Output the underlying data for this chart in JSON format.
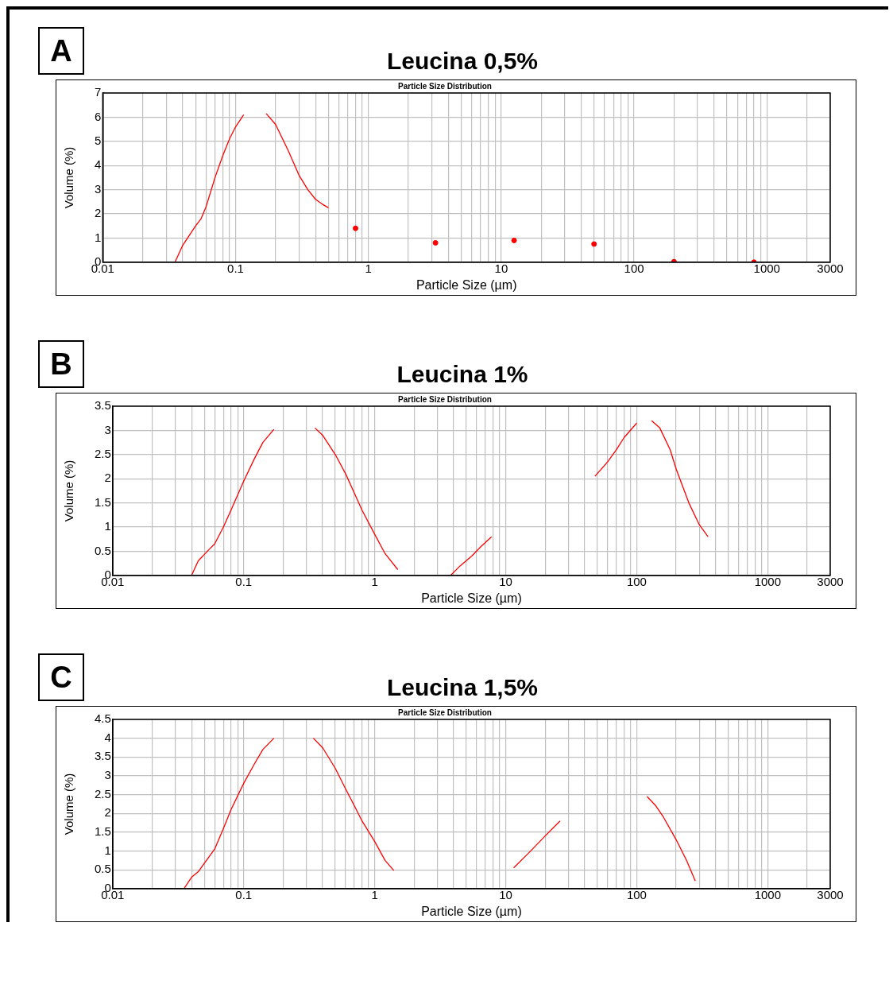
{
  "chart_data": [
    {
      "type": "line",
      "title": "Leucina 0,5%",
      "subtitle": "Particle Size Distribution",
      "xlabel": "Particle Size (µm)",
      "ylabel": "Volume (%)",
      "annotations": [
        "A"
      ],
      "log": "x",
      "grid": true,
      "marker": "none",
      "line_style": "solid",
      "legend": false,
      "xlim": [
        0.01,
        3000
      ],
      "xticks": [
        0.01,
        {
          "value": 0.02,
          "label": null
        },
        {
          "value": 0.03,
          "label": null
        },
        {
          "value": 0.04,
          "label": null
        },
        {
          "value": 0.05,
          "label": null
        },
        {
          "value": 0.06,
          "label": null
        },
        {
          "value": 0.07,
          "label": null
        },
        {
          "value": 0.08,
          "label": null
        },
        {
          "value": 0.09,
          "label": null
        },
        0.1,
        {
          "value": 0.2,
          "label": null
        },
        {
          "value": 0.3,
          "label": null
        },
        {
          "value": 0.4,
          "label": null
        },
        {
          "value": 0.5,
          "label": null
        },
        {
          "value": 0.6,
          "label": null
        },
        {
          "value": 0.7,
          "label": null
        },
        {
          "value": 0.8,
          "label": null
        },
        {
          "value": 0.9,
          "label": null
        },
        1,
        {
          "value": 2,
          "label": null
        },
        {
          "value": 3,
          "label": null
        },
        {
          "value": 4,
          "label": null
        },
        {
          "value": 5,
          "label": null
        },
        {
          "value": 6,
          "label": null
        },
        {
          "value": 7,
          "label": null
        },
        {
          "value": 8,
          "label": null
        },
        {
          "value": 9,
          "label": null
        },
        10,
        {
          "value": 20,
          "label": null
        },
        {
          "value": 30,
          "label": null
        },
        {
          "value": 40,
          "label": null
        },
        {
          "value": 50,
          "label": null
        },
        {
          "value": 60,
          "label": null
        },
        {
          "value": 70,
          "label": null
        },
        {
          "value": 80,
          "label": null
        },
        {
          "value": 90,
          "label": null
        },
        100,
        {
          "value": 200,
          "label": null
        },
        {
          "value": 300,
          "label": null
        },
        {
          "value": 400,
          "label": null
        },
        {
          "value": 500,
          "label": null
        },
        {
          "value": 600,
          "label": null
        },
        {
          "value": 700,
          "label": null
        },
        {
          "value": 800,
          "label": null
        },
        {
          "value": 900,
          "label": null
        },
        1000,
        {
          "value": 2000,
          "label": null
        },
        3000
      ],
      "ylim": [
        0,
        7
      ],
      "yticks": [
        0,
        1,
        2,
        3,
        4,
        5,
        6,
        7
      ],
      "series": [
        {
          "color": "#ff0000",
          "x": [
            0.035,
            0.04,
            0.05,
            0.055,
            0.06,
            0.07,
            0.08,
            0.09,
            0.1,
            0.115,
            0.14,
            0.17,
            0.2,
            0.25,
            0.3,
            0.35,
            0.4,
            0.45,
            0.5
          ],
          "values": [
            0,
            0.7,
            1.5,
            1.8,
            2.3,
            3.5,
            4.4,
            5.1,
            5.6,
            6.1,
            null,
            6.15,
            5.7,
            4.6,
            3.6,
            3.0,
            2.6,
            2.4,
            2.25
          ]
        },
        {
          "type": "scatter",
          "marker": "circle",
          "color": "#ff0000",
          "x": [
            0.8,
            3.2,
            12.5,
            50,
            200,
            800
          ],
          "values": [
            1.4,
            0.8,
            0.9,
            0.75,
            0.02,
            0
          ]
        }
      ]
    },
    {
      "type": "line",
      "title": "Leucina 1%",
      "subtitle": "Particle Size Distribution",
      "xlabel": "Particle Size (µm)",
      "ylabel": "Volume (%)",
      "annotations": [
        "B"
      ],
      "log": "x",
      "grid": true,
      "marker": "none",
      "line_style": "solid",
      "legend": false,
      "xlim": [
        0.01,
        3000
      ],
      "xticks": [
        0.01,
        {
          "value": 0.02,
          "label": null
        },
        {
          "value": 0.03,
          "label": null
        },
        {
          "value": 0.04,
          "label": null
        },
        {
          "value": 0.05,
          "label": null
        },
        {
          "value": 0.06,
          "label": null
        },
        {
          "value": 0.07,
          "label": null
        },
        {
          "value": 0.08,
          "label": null
        },
        {
          "value": 0.09,
          "label": null
        },
        0.1,
        {
          "value": 0.2,
          "label": null
        },
        {
          "value": 0.3,
          "label": null
        },
        {
          "value": 0.4,
          "label": null
        },
        {
          "value": 0.5,
          "label": null
        },
        {
          "value": 0.6,
          "label": null
        },
        {
          "value": 0.7,
          "label": null
        },
        {
          "value": 0.8,
          "label": null
        },
        {
          "value": 0.9,
          "label": null
        },
        1,
        {
          "value": 2,
          "label": null
        },
        {
          "value": 3,
          "label": null
        },
        {
          "value": 4,
          "label": null
        },
        {
          "value": 5,
          "label": null
        },
        {
          "value": 6,
          "label": null
        },
        {
          "value": 7,
          "label": null
        },
        {
          "value": 8,
          "label": null
        },
        {
          "value": 9,
          "label": null
        },
        10,
        {
          "value": 20,
          "label": null
        },
        {
          "value": 30,
          "label": null
        },
        {
          "value": 40,
          "label": null
        },
        {
          "value": 50,
          "label": null
        },
        {
          "value": 60,
          "label": null
        },
        {
          "value": 70,
          "label": null
        },
        {
          "value": 80,
          "label": null
        },
        {
          "value": 90,
          "label": null
        },
        100,
        {
          "value": 200,
          "label": null
        },
        {
          "value": 300,
          "label": null
        },
        {
          "value": 400,
          "label": null
        },
        {
          "value": 500,
          "label": null
        },
        {
          "value": 600,
          "label": null
        },
        {
          "value": 700,
          "label": null
        },
        {
          "value": 800,
          "label": null
        },
        {
          "value": 900,
          "label": null
        },
        1000,
        {
          "value": 2000,
          "label": null
        },
        3000
      ],
      "ylim": [
        0,
        3.5
      ],
      "yticks": [
        0,
        0.5,
        1,
        1.5,
        2,
        2.5,
        3,
        3.5
      ],
      "series": [
        {
          "color": "#ff0000",
          "x": [
            0.04,
            0.045,
            0.055,
            0.06,
            0.07,
            0.08,
            0.1,
            0.12,
            0.14,
            0.17,
            0.25,
            0.35,
            0.4,
            0.5,
            0.6,
            0.7,
            0.8,
            1.0,
            1.2,
            1.5,
            2.5,
            3.8,
            4.5,
            5.5,
            6.5,
            7.8,
            20,
            48,
            60,
            70,
            80,
            100,
            115,
            130,
            150,
            180,
            200,
            250,
            300,
            350
          ],
          "values": [
            0,
            0.3,
            0.55,
            0.65,
            1.0,
            1.35,
            1.95,
            2.4,
            2.75,
            3.02,
            null,
            3.05,
            2.9,
            2.5,
            2.1,
            1.7,
            1.35,
            0.85,
            0.45,
            0.12,
            null,
            0,
            0.2,
            0.4,
            0.6,
            0.8,
            null,
            2.05,
            2.35,
            2.6,
            2.85,
            3.15,
            null,
            3.2,
            3.05,
            2.6,
            2.2,
            1.5,
            1.05,
            0.8
          ]
        }
      ]
    },
    {
      "type": "line",
      "title": "Leucina 1,5%",
      "subtitle": "Particle Size Distribution",
      "xlabel": "Particle Size (µm)",
      "ylabel": "Volume (%)",
      "annotations": [
        "C"
      ],
      "log": "x",
      "grid": true,
      "marker": "none",
      "line_style": "solid",
      "legend": false,
      "xlim": [
        0.01,
        3000
      ],
      "xticks": [
        0.01,
        {
          "value": 0.02,
          "label": null
        },
        {
          "value": 0.03,
          "label": null
        },
        {
          "value": 0.04,
          "label": null
        },
        {
          "value": 0.05,
          "label": null
        },
        {
          "value": 0.06,
          "label": null
        },
        {
          "value": 0.07,
          "label": null
        },
        {
          "value": 0.08,
          "label": null
        },
        {
          "value": 0.09,
          "label": null
        },
        0.1,
        {
          "value": 0.2,
          "label": null
        },
        {
          "value": 0.3,
          "label": null
        },
        {
          "value": 0.4,
          "label": null
        },
        {
          "value": 0.5,
          "label": null
        },
        {
          "value": 0.6,
          "label": null
        },
        {
          "value": 0.7,
          "label": null
        },
        {
          "value": 0.8,
          "label": null
        },
        {
          "value": 0.9,
          "label": null
        },
        1,
        {
          "value": 2,
          "label": null
        },
        {
          "value": 3,
          "label": null
        },
        {
          "value": 4,
          "label": null
        },
        {
          "value": 5,
          "label": null
        },
        {
          "value": 6,
          "label": null
        },
        {
          "value": 7,
          "label": null
        },
        {
          "value": 8,
          "label": null
        },
        {
          "value": 9,
          "label": null
        },
        10,
        {
          "value": 20,
          "label": null
        },
        {
          "value": 30,
          "label": null
        },
        {
          "value": 40,
          "label": null
        },
        {
          "value": 50,
          "label": null
        },
        {
          "value": 60,
          "label": null
        },
        {
          "value": 70,
          "label": null
        },
        {
          "value": 80,
          "label": null
        },
        {
          "value": 90,
          "label": null
        },
        100,
        {
          "value": 200,
          "label": null
        },
        {
          "value": 300,
          "label": null
        },
        {
          "value": 400,
          "label": null
        },
        {
          "value": 500,
          "label": null
        },
        {
          "value": 600,
          "label": null
        },
        {
          "value": 700,
          "label": null
        },
        {
          "value": 800,
          "label": null
        },
        {
          "value": 900,
          "label": null
        },
        1000,
        {
          "value": 2000,
          "label": null
        },
        3000
      ],
      "ylim": [
        0,
        4.5
      ],
      "yticks": [
        0,
        0.5,
        1,
        1.5,
        2,
        2.5,
        3,
        3.5,
        4,
        4.5
      ],
      "series": [
        {
          "color": "#ff0000",
          "x": [
            0.035,
            0.04,
            0.045,
            0.06,
            0.07,
            0.08,
            0.1,
            0.12,
            0.14,
            0.17,
            0.25,
            0.34,
            0.4,
            0.5,
            0.6,
            0.7,
            0.8,
            1.0,
            1.2,
            1.4,
            5,
            11.5,
            15,
            20,
            26,
            60,
            120,
            140,
            160,
            200,
            240,
            280
          ],
          "values": [
            0,
            0.3,
            0.45,
            1.05,
            1.6,
            2.1,
            2.8,
            3.3,
            3.7,
            4.0,
            null,
            4.0,
            3.75,
            3.2,
            2.65,
            2.2,
            1.8,
            1.25,
            0.75,
            0.48,
            null,
            0.55,
            0.95,
            1.4,
            1.8,
            null,
            2.45,
            2.2,
            1.9,
            1.3,
            0.75,
            0.2
          ]
        }
      ]
    }
  ]
}
